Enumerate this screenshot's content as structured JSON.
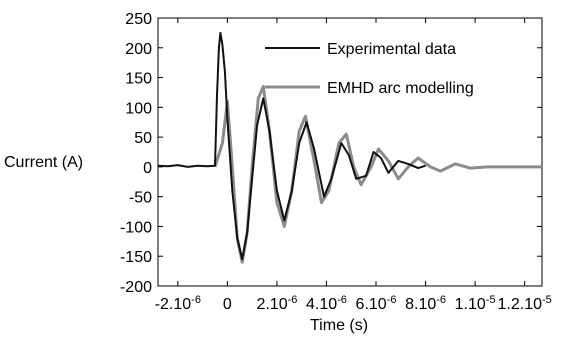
{
  "chart_data": {
    "type": "line",
    "xlabel": "Time (s)",
    "ylabel": "Current (A)",
    "xlim": [
      -2.8e-06,
      1.27e-05
    ],
    "ylim": [
      -200,
      250
    ],
    "yticks": [
      250,
      200,
      150,
      100,
      50,
      0,
      -50,
      -100,
      -150,
      -200
    ],
    "xticks": [
      {
        "value": -2e-06,
        "base": "-2.10",
        "exp": "-6"
      },
      {
        "value": 0,
        "base": "0",
        "exp": ""
      },
      {
        "value": 2e-06,
        "base": "2.10",
        "exp": "-6"
      },
      {
        "value": 4e-06,
        "base": "4.10",
        "exp": "-6"
      },
      {
        "value": 6e-06,
        "base": "6.10",
        "exp": "-6"
      },
      {
        "value": 8e-06,
        "base": "8.10",
        "exp": "-6"
      },
      {
        "value": 1e-05,
        "base": "1.10",
        "exp": "-5"
      },
      {
        "value": 1.2e-05,
        "base": "1.2.10",
        "exp": "-5"
      }
    ],
    "legend_position": "top-right",
    "series": [
      {
        "name": "Experimental data",
        "color": "#111111",
        "points": [
          [
            -2.8e-06,
            2
          ],
          [
            -2.4e-06,
            1
          ],
          [
            -2e-06,
            3
          ],
          [
            -1.6e-06,
            0
          ],
          [
            -1.2e-06,
            2
          ],
          [
            -8e-07,
            1
          ],
          [
            -5e-07,
            2
          ],
          [
            -4.2e-07,
            120
          ],
          [
            -3.4e-07,
            200
          ],
          [
            -2.8e-07,
            225
          ],
          [
            -2e-07,
            205
          ],
          [
            -1e-07,
            160
          ],
          [
            0,
            80
          ],
          [
            2e-07,
            -40
          ],
          [
            4e-07,
            -120
          ],
          [
            6e-07,
            -155
          ],
          [
            8e-07,
            -110
          ],
          [
            1e-06,
            -20
          ],
          [
            1.2e-06,
            70
          ],
          [
            1.45e-06,
            115
          ],
          [
            1.7e-06,
            60
          ],
          [
            2e-06,
            -40
          ],
          [
            2.3e-06,
            -90
          ],
          [
            2.6e-06,
            -40
          ],
          [
            2.9e-06,
            40
          ],
          [
            3.2e-06,
            75
          ],
          [
            3.5e-06,
            30
          ],
          [
            3.9e-06,
            -50
          ],
          [
            4.2e-06,
            -20
          ],
          [
            4.6e-06,
            40
          ],
          [
            4.9e-06,
            20
          ],
          [
            5.2e-06,
            -20
          ],
          [
            5.6e-06,
            -15
          ],
          [
            5.9e-06,
            25
          ],
          [
            6.2e-06,
            15
          ],
          [
            6.5e-06,
            -10
          ],
          [
            6.9e-06,
            10
          ],
          [
            7.3e-06,
            5
          ],
          [
            7.7e-06,
            -2
          ],
          [
            8e-06,
            2
          ]
        ]
      },
      {
        "name": "EMHD arc modelling",
        "color": "#8c8c8c",
        "points": [
          [
            -5e-07,
            0
          ],
          [
            -2e-07,
            40
          ],
          [
            0,
            110
          ],
          [
            2e-07,
            0
          ],
          [
            4e-07,
            -120
          ],
          [
            6e-07,
            -160
          ],
          [
            8e-07,
            -110
          ],
          [
            1e-06,
            0
          ],
          [
            1.25e-06,
            115
          ],
          [
            1.45e-06,
            135
          ],
          [
            1.7e-06,
            60
          ],
          [
            2e-06,
            -60
          ],
          [
            2.3e-06,
            -100
          ],
          [
            2.6e-06,
            -40
          ],
          [
            2.9e-06,
            60
          ],
          [
            3.15e-06,
            85
          ],
          [
            3.5e-06,
            10
          ],
          [
            3.8e-06,
            -60
          ],
          [
            4.1e-06,
            -40
          ],
          [
            4.5e-06,
            40
          ],
          [
            4.8e-06,
            55
          ],
          [
            5.1e-06,
            0
          ],
          [
            5.4e-06,
            -30
          ],
          [
            5.8e-06,
            0
          ],
          [
            6.1e-06,
            30
          ],
          [
            6.5e-06,
            10
          ],
          [
            6.9e-06,
            -20
          ],
          [
            7.3e-06,
            0
          ],
          [
            7.7e-06,
            15
          ],
          [
            8.2e-06,
            0
          ],
          [
            8.6e-06,
            -7
          ],
          [
            9.2e-06,
            5
          ],
          [
            9.8e-06,
            -2
          ],
          [
            1.05e-05,
            0
          ],
          [
            1.15e-05,
            0
          ],
          [
            1.27e-05,
            0
          ]
        ]
      }
    ]
  }
}
